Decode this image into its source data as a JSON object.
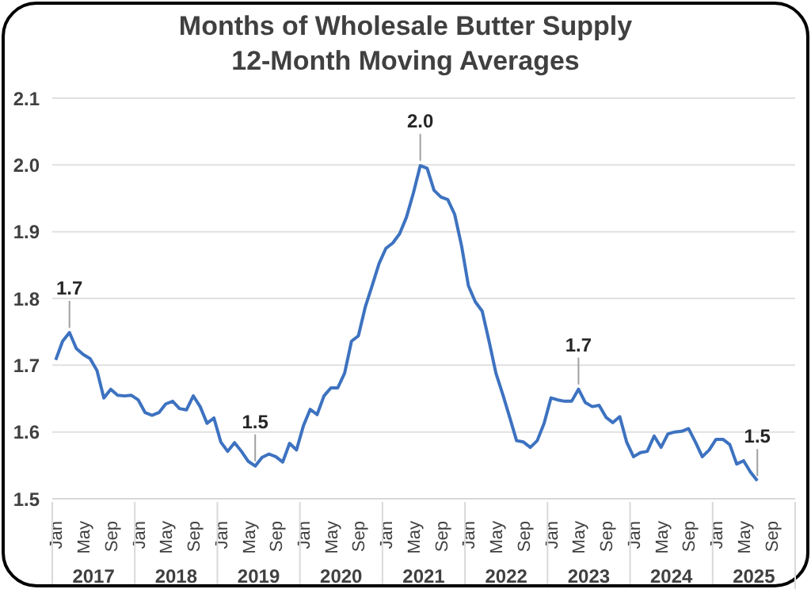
{
  "chart_data": {
    "type": "line",
    "title": "Months of Wholesale Butter Supply",
    "subtitle": "12-Month Moving Averages",
    "categories": [
      "Jan",
      null,
      null,
      null,
      "May",
      null,
      null,
      null,
      "Sep",
      null,
      null,
      null,
      "Jan",
      null,
      null,
      null,
      "May",
      null,
      null,
      null,
      "Sep",
      null,
      null,
      null,
      "Jan",
      null,
      null,
      null,
      "May",
      null,
      null,
      null,
      "Sep",
      null,
      null,
      null,
      "Jan",
      null,
      null,
      null,
      "May",
      null,
      null,
      null,
      "Sep",
      null,
      null,
      null,
      "Jan",
      null,
      null,
      null,
      "May",
      null,
      null,
      null,
      "Sep",
      null,
      null,
      null,
      "Jan",
      null,
      null,
      null,
      "May",
      null,
      null,
      null,
      "Sep",
      null,
      null,
      null,
      "Jan",
      null,
      null,
      null,
      "May",
      null,
      null,
      null,
      "Sep",
      null,
      null,
      null,
      "Jan",
      null,
      null,
      null,
      "May",
      null,
      null,
      null,
      "Sep",
      null,
      null,
      null,
      "Jan",
      null,
      null,
      null,
      "May",
      null,
      null,
      null,
      "Sep",
      null,
      null,
      null
    ],
    "annotations": [
      "2017",
      "2018",
      "2019",
      "2020",
      "2021",
      "2022",
      "2023",
      "2024",
      "2025"
    ],
    "series": [
      {
        "color": "#3d72c0",
        "values": [
          1.708,
          1.736,
          1.749,
          1.725,
          1.716,
          1.71,
          1.692,
          1.651,
          1.664,
          1.655,
          1.654,
          1.655,
          1.648,
          1.629,
          1.625,
          1.629,
          1.642,
          1.646,
          1.635,
          1.633,
          1.654,
          1.638,
          1.613,
          1.621,
          1.585,
          1.571,
          1.584,
          1.571,
          1.556,
          1.549,
          1.562,
          1.567,
          1.563,
          1.555,
          1.583,
          1.573,
          1.609,
          1.634,
          1.626,
          1.654,
          1.666,
          1.666,
          1.688,
          1.736,
          1.744,
          1.787,
          1.819,
          1.852,
          1.875,
          1.883,
          1.897,
          1.922,
          1.958,
          1.999,
          1.995,
          1.962,
          1.952,
          1.948,
          1.926,
          1.879,
          1.819,
          1.795,
          1.781,
          1.736,
          1.688,
          1.656,
          1.622,
          1.587,
          1.585,
          1.577,
          1.587,
          1.613,
          1.651,
          1.648,
          1.646,
          1.646,
          1.664,
          1.644,
          1.638,
          1.64,
          1.622,
          1.614,
          1.623,
          1.585,
          1.563,
          1.569,
          1.571,
          1.594,
          1.577,
          1.597,
          1.6,
          1.601,
          1.605,
          1.585,
          1.563,
          1.573,
          1.589,
          1.589,
          1.581,
          1.552,
          1.557,
          1.54,
          1.527,
          null,
          null,
          null,
          null,
          null
        ],
        "value_labels": [
          null,
          null,
          "1.7",
          null,
          null,
          null,
          null,
          null,
          null,
          null,
          null,
          null,
          null,
          null,
          null,
          null,
          null,
          null,
          null,
          null,
          null,
          null,
          null,
          null,
          null,
          null,
          null,
          null,
          null,
          "1.5",
          null,
          null,
          null,
          null,
          null,
          null,
          null,
          null,
          null,
          null,
          null,
          null,
          null,
          null,
          null,
          null,
          null,
          null,
          null,
          null,
          null,
          null,
          null,
          "2.0",
          null,
          null,
          null,
          null,
          null,
          null,
          null,
          null,
          null,
          null,
          null,
          null,
          null,
          null,
          null,
          null,
          null,
          null,
          null,
          null,
          null,
          null,
          "1.7",
          null,
          null,
          null,
          null,
          null,
          null,
          null,
          null,
          null,
          null,
          null,
          null,
          null,
          null,
          null,
          null,
          null,
          null,
          null,
          null,
          null,
          null,
          null,
          null,
          null,
          "1.5",
          null,
          null,
          null,
          null,
          null
        ]
      }
    ],
    "ylim": [
      1.5,
      2.1
    ],
    "yticks": [
      1.5,
      1.6,
      1.7,
      1.8,
      1.9,
      {
        "value": 2,
        "label": "2.0"
      },
      2.1
    ],
    "grid": "y",
    "marker": "none",
    "line_style": "solid"
  }
}
